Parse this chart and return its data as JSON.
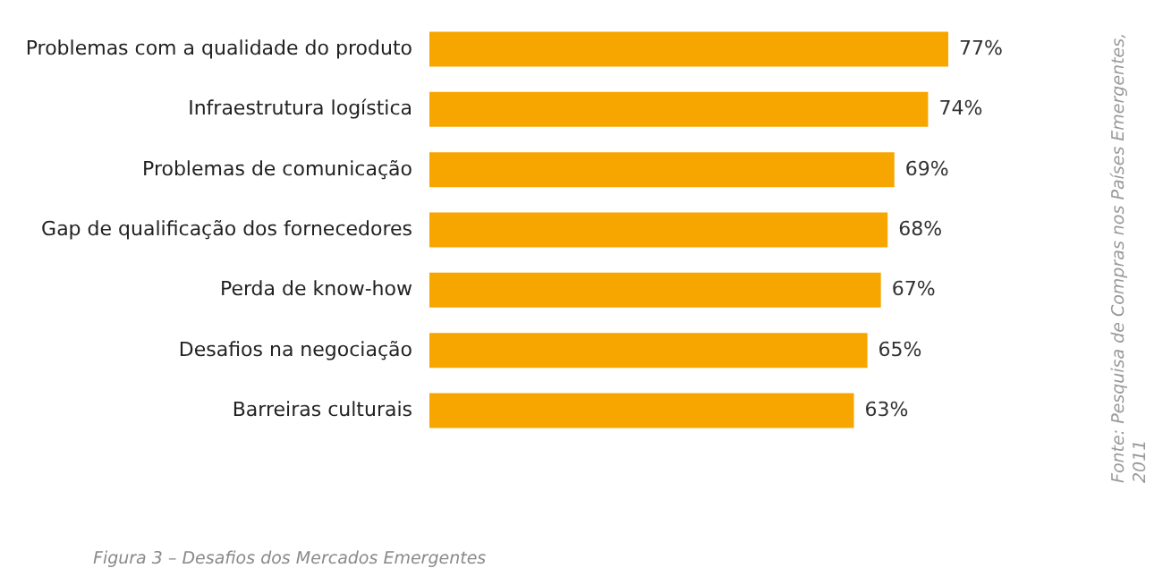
{
  "chart_data": {
    "type": "bar",
    "orientation": "horizontal",
    "categories": [
      "Problemas com a qualidade do produto",
      "Infraestrutura logística",
      "Problemas de comunicação",
      "Gap de qualificação dos fornecedores",
      "Perda de know-how",
      "Desafios na negociação",
      "Barreiras culturais"
    ],
    "values": [
      77,
      74,
      69,
      68,
      67,
      65,
      63
    ],
    "value_labels": [
      "77%",
      "74%",
      "69%",
      "68%",
      "67%",
      "65%",
      "63%"
    ],
    "color": "#f7a600",
    "tick_labels": "y",
    "annotations": [
      "Fonte: Pesquisa de Compras nos Países Emergentes, 2011",
      "Figura 3 – Desafios dos Mercados Emergentes"
    ]
  }
}
